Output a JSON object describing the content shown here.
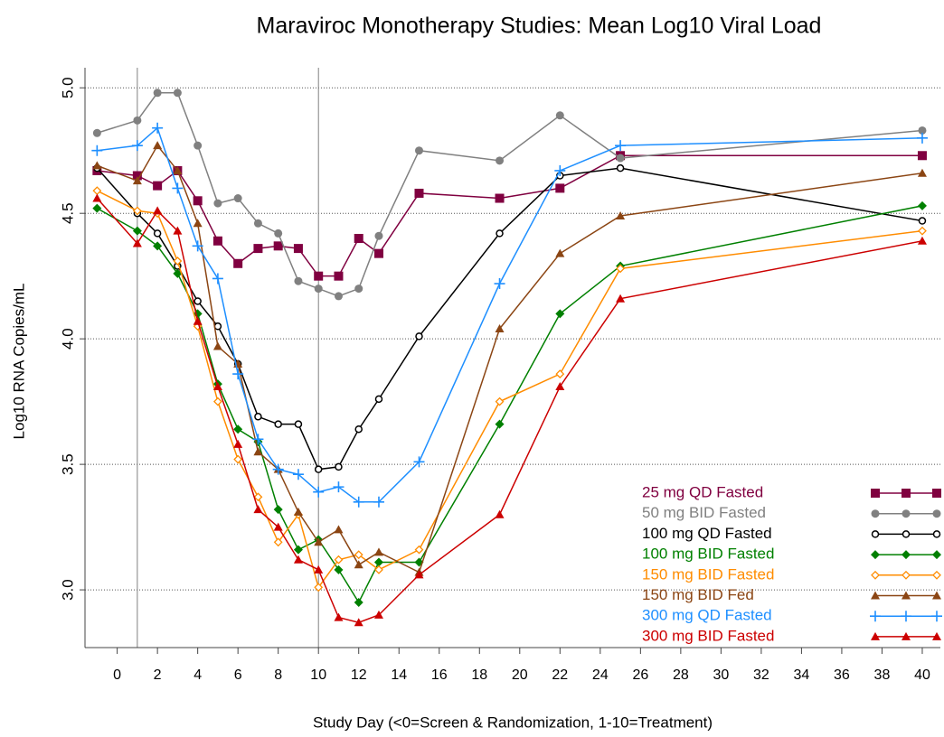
{
  "chart_data": {
    "type": "line",
    "title": "Maraviroc Monotherapy Studies: Mean Log10 Viral Load",
    "x_label": "Study Day (<0=Screen & Randomization, 1-10=Treatment)",
    "y_label": "Log10 RNA Copies/mL",
    "x": [
      -1,
      1,
      2,
      3,
      4,
      5,
      6,
      7,
      8,
      9,
      10,
      11,
      12,
      13,
      15,
      19,
      22,
      25,
      40
    ],
    "xlim": [
      -1.6,
      40.9
    ],
    "xticks": [
      0,
      2,
      4,
      6,
      8,
      10,
      12,
      14,
      16,
      18,
      20,
      22,
      24,
      26,
      28,
      30,
      32,
      34,
      36,
      38,
      40
    ],
    "ylim": [
      2.77,
      5.08
    ],
    "yticks": [
      {
        "value": 3,
        "label": "3.0"
      },
      {
        "value": 3.5,
        "label": "3.5"
      },
      {
        "value": 4,
        "label": "4.0"
      },
      {
        "value": 4.5,
        "label": "4.5"
      },
      {
        "value": 5,
        "label": "5.0"
      }
    ],
    "grid": true,
    "reference_lines_x": [
      1,
      10
    ],
    "legend": "lower-right",
    "series": [
      {
        "name": "25 mg QD Fasted",
        "color": "#800040",
        "marker": "square",
        "values": [
          4.67,
          4.65,
          4.61,
          4.67,
          4.55,
          4.39,
          4.3,
          4.36,
          4.37,
          4.36,
          4.25,
          4.25,
          4.4,
          4.34,
          4.58,
          4.56,
          4.6,
          4.73,
          4.73
        ]
      },
      {
        "name": "50 mg BID Fasted",
        "color": "#808080",
        "marker": "circle",
        "values": [
          4.82,
          4.87,
          4.98,
          4.98,
          4.77,
          4.54,
          4.56,
          4.46,
          4.42,
          4.23,
          4.2,
          4.17,
          4.2,
          4.41,
          4.75,
          4.71,
          4.89,
          4.72,
          4.83
        ]
      },
      {
        "name": "100 mg QD Fasted",
        "color": "#000000",
        "marker": "open-circle",
        "values": [
          4.68,
          4.5,
          4.42,
          4.29,
          4.15,
          4.05,
          3.9,
          3.69,
          3.66,
          3.66,
          3.48,
          3.49,
          3.64,
          3.76,
          4.01,
          4.42,
          4.65,
          4.68,
          4.47
        ]
      },
      {
        "name": "100 mg BID Fasted",
        "color": "#008000",
        "marker": "diamond",
        "values": [
          4.52,
          4.43,
          4.37,
          4.26,
          4.1,
          3.82,
          3.64,
          3.59,
          3.32,
          3.16,
          3.2,
          3.08,
          2.95,
          3.11,
          3.11,
          3.66,
          4.1,
          4.29,
          4.53
        ]
      },
      {
        "name": "150 mg BID Fasted",
        "color": "#ff8c00",
        "marker": "open-diamond",
        "values": [
          4.59,
          4.51,
          4.5,
          4.31,
          4.05,
          3.75,
          3.52,
          3.37,
          3.19,
          3.3,
          3.01,
          3.12,
          3.14,
          3.08,
          3.16,
          3.75,
          3.86,
          4.28,
          4.43
        ]
      },
      {
        "name": "150 mg BID Fed",
        "color": "#8b4513",
        "marker": "triangle",
        "values": [
          4.69,
          4.63,
          4.77,
          4.67,
          4.46,
          3.97,
          3.9,
          3.55,
          3.48,
          3.31,
          3.19,
          3.24,
          3.1,
          3.15,
          3.07,
          4.04,
          4.34,
          4.49,
          4.66
        ]
      },
      {
        "name": "300 mg QD Fasted",
        "color": "#1e8fff",
        "marker": "plus",
        "values": [
          4.75,
          4.77,
          4.84,
          4.6,
          4.37,
          4.24,
          3.86,
          3.6,
          3.48,
          3.46,
          3.39,
          3.41,
          3.35,
          3.35,
          3.51,
          4.22,
          4.67,
          4.77,
          4.8
        ]
      },
      {
        "name": "300 mg BID Fasted",
        "color": "#cc0000",
        "marker": "triangle",
        "values": [
          4.56,
          4.38,
          4.51,
          4.43,
          4.07,
          3.81,
          3.58,
          3.32,
          3.25,
          3.12,
          3.08,
          2.89,
          2.87,
          2.9,
          3.06,
          3.3,
          3.81,
          4.16,
          4.39
        ]
      }
    ]
  }
}
